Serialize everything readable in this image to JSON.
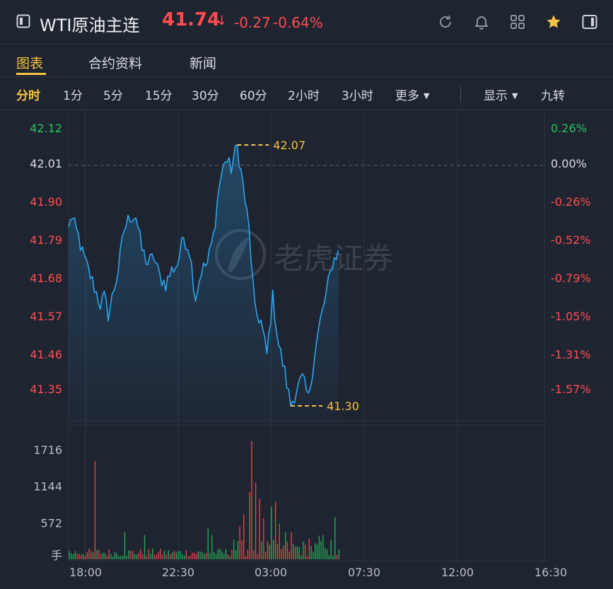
{
  "header": {
    "title": "WTI原油主连",
    "price": "41.74",
    "arrow": "↓",
    "change": "-0.27",
    "change_pct": "-0.64%",
    "icons": [
      "refresh-icon",
      "bell-icon",
      "grid-icon",
      "star-icon",
      "panel-icon"
    ]
  },
  "tabs": [
    "图表",
    "合约资料",
    "新闻"
  ],
  "active_tab": "图表",
  "periods": [
    "分时",
    "1分",
    "5分",
    "15分",
    "30分",
    "60分",
    "2小时",
    "3小时"
  ],
  "more_label": "更多",
  "display_label": "显示",
  "nine_label": "九转",
  "colors": {
    "up": "#27c25c",
    "down": "#ff4d4f",
    "accent": "#f5c242",
    "line": "#2aa6ee",
    "bg": "#1f2431"
  },
  "watermark": "老虎证券",
  "chart_data": {
    "type": "line",
    "price_ticks": [
      "42.12",
      "42.01",
      "41.90",
      "41.79",
      "41.68",
      "41.57",
      "41.46",
      "41.35"
    ],
    "pct_ticks": [
      "0.26%",
      "0.00%",
      "-0.26%",
      "-0.52%",
      "-0.79%",
      "-1.05%",
      "-1.31%",
      "-1.57%"
    ],
    "prev_close": 42.01,
    "ylim": [
      41.35,
      42.12
    ],
    "high_label": "42.07",
    "low_label": "41.30",
    "time_ticks": [
      "18:00",
      "22:30",
      "03:00",
      "07:30",
      "12:00",
      "16:30"
    ],
    "volume_ticks": [
      "1716",
      "1144",
      "572"
    ],
    "volume_unit": "手",
    "price_anchors": [
      [
        0,
        41.82
      ],
      [
        1,
        41.86
      ],
      [
        3,
        41.83
      ],
      [
        5,
        41.8
      ],
      [
        7,
        41.75
      ],
      [
        10,
        41.7
      ],
      [
        13,
        41.65
      ],
      [
        16,
        41.6
      ],
      [
        18,
        41.62
      ],
      [
        20,
        41.57
      ],
      [
        22,
        41.62
      ],
      [
        25,
        41.7
      ],
      [
        28,
        41.82
      ],
      [
        31,
        41.86
      ],
      [
        34,
        41.86
      ],
      [
        37,
        41.76
      ],
      [
        40,
        41.72
      ],
      [
        43,
        41.74
      ],
      [
        46,
        41.68
      ],
      [
        49,
        41.66
      ],
      [
        52,
        41.7
      ],
      [
        55,
        41.72
      ],
      [
        58,
        41.8
      ],
      [
        61,
        41.76
      ],
      [
        64,
        41.62
      ],
      [
        67,
        41.7
      ],
      [
        70,
        41.72
      ],
      [
        73,
        41.8
      ],
      [
        76,
        41.95
      ],
      [
        79,
        42.03
      ],
      [
        82,
        42.0
      ],
      [
        85,
        42.07
      ],
      [
        88,
        41.95
      ],
      [
        91,
        41.82
      ],
      [
        94,
        41.58
      ],
      [
        97,
        41.55
      ],
      [
        100,
        41.45
      ],
      [
        103,
        41.62
      ],
      [
        106,
        41.48
      ],
      [
        109,
        41.4
      ],
      [
        112,
        41.3
      ],
      [
        115,
        41.35
      ],
      [
        118,
        41.38
      ],
      [
        121,
        41.32
      ],
      [
        124,
        41.45
      ],
      [
        127,
        41.55
      ],
      [
        130,
        41.63
      ],
      [
        133,
        41.72
      ],
      [
        136,
        41.76
      ]
    ],
    "volume_spikes": [
      [
        13,
        1540
      ],
      [
        28,
        420
      ],
      [
        38,
        380
      ],
      [
        70,
        480
      ],
      [
        72,
        380
      ],
      [
        83,
        310
      ],
      [
        86,
        520
      ],
      [
        88,
        700
      ],
      [
        91,
        1050
      ],
      [
        92,
        1850
      ],
      [
        94,
        1200
      ],
      [
        96,
        950
      ],
      [
        98,
        640
      ],
      [
        102,
        820
      ],
      [
        104,
        900
      ],
      [
        106,
        560
      ],
      [
        109,
        420
      ],
      [
        112,
        420
      ],
      [
        121,
        320
      ],
      [
        126,
        370
      ],
      [
        128,
        380
      ],
      [
        132,
        310
      ],
      [
        134,
        660
      ]
    ]
  }
}
